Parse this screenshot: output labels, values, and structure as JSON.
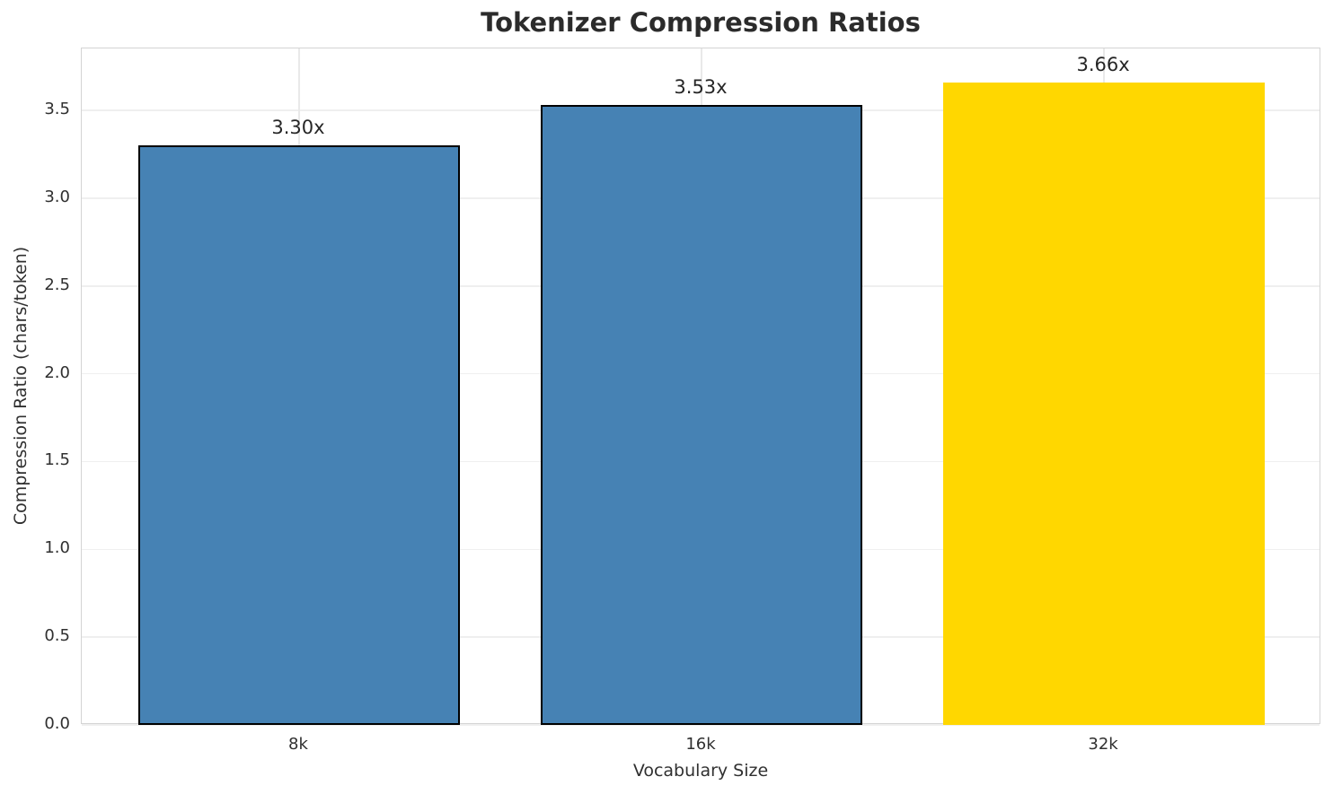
{
  "chart_data": {
    "type": "bar",
    "title": "Tokenizer Compression Ratios",
    "xlabel": "Vocabulary Size",
    "ylabel": "Compression Ratio (chars/token)",
    "categories": [
      "8k",
      "16k",
      "32k"
    ],
    "values": [
      3.3,
      3.53,
      3.66
    ],
    "bar_labels": [
      "3.30x",
      "3.53x",
      "3.66x"
    ],
    "bar_colors": [
      "#4682B4",
      "#4682B4",
      "#FFD700"
    ],
    "bar_edge_colors": [
      "#000000",
      "#000000",
      "none"
    ],
    "ytick_labels": [
      "0.0",
      "0.5",
      "1.0",
      "1.5",
      "2.0",
      "2.5",
      "3.0",
      "3.5"
    ],
    "yticks": [
      0.0,
      0.5,
      1.0,
      1.5,
      2.0,
      2.5,
      3.0,
      3.5
    ],
    "ylim": [
      0,
      3.853
    ],
    "grid": true,
    "legend": "none",
    "colors": {
      "bar_default": "#4682B4",
      "bar_highlight": "#FFD700",
      "spine": "#d4d4d4",
      "grid": "#efefef",
      "text": "#2b2b2b"
    }
  }
}
